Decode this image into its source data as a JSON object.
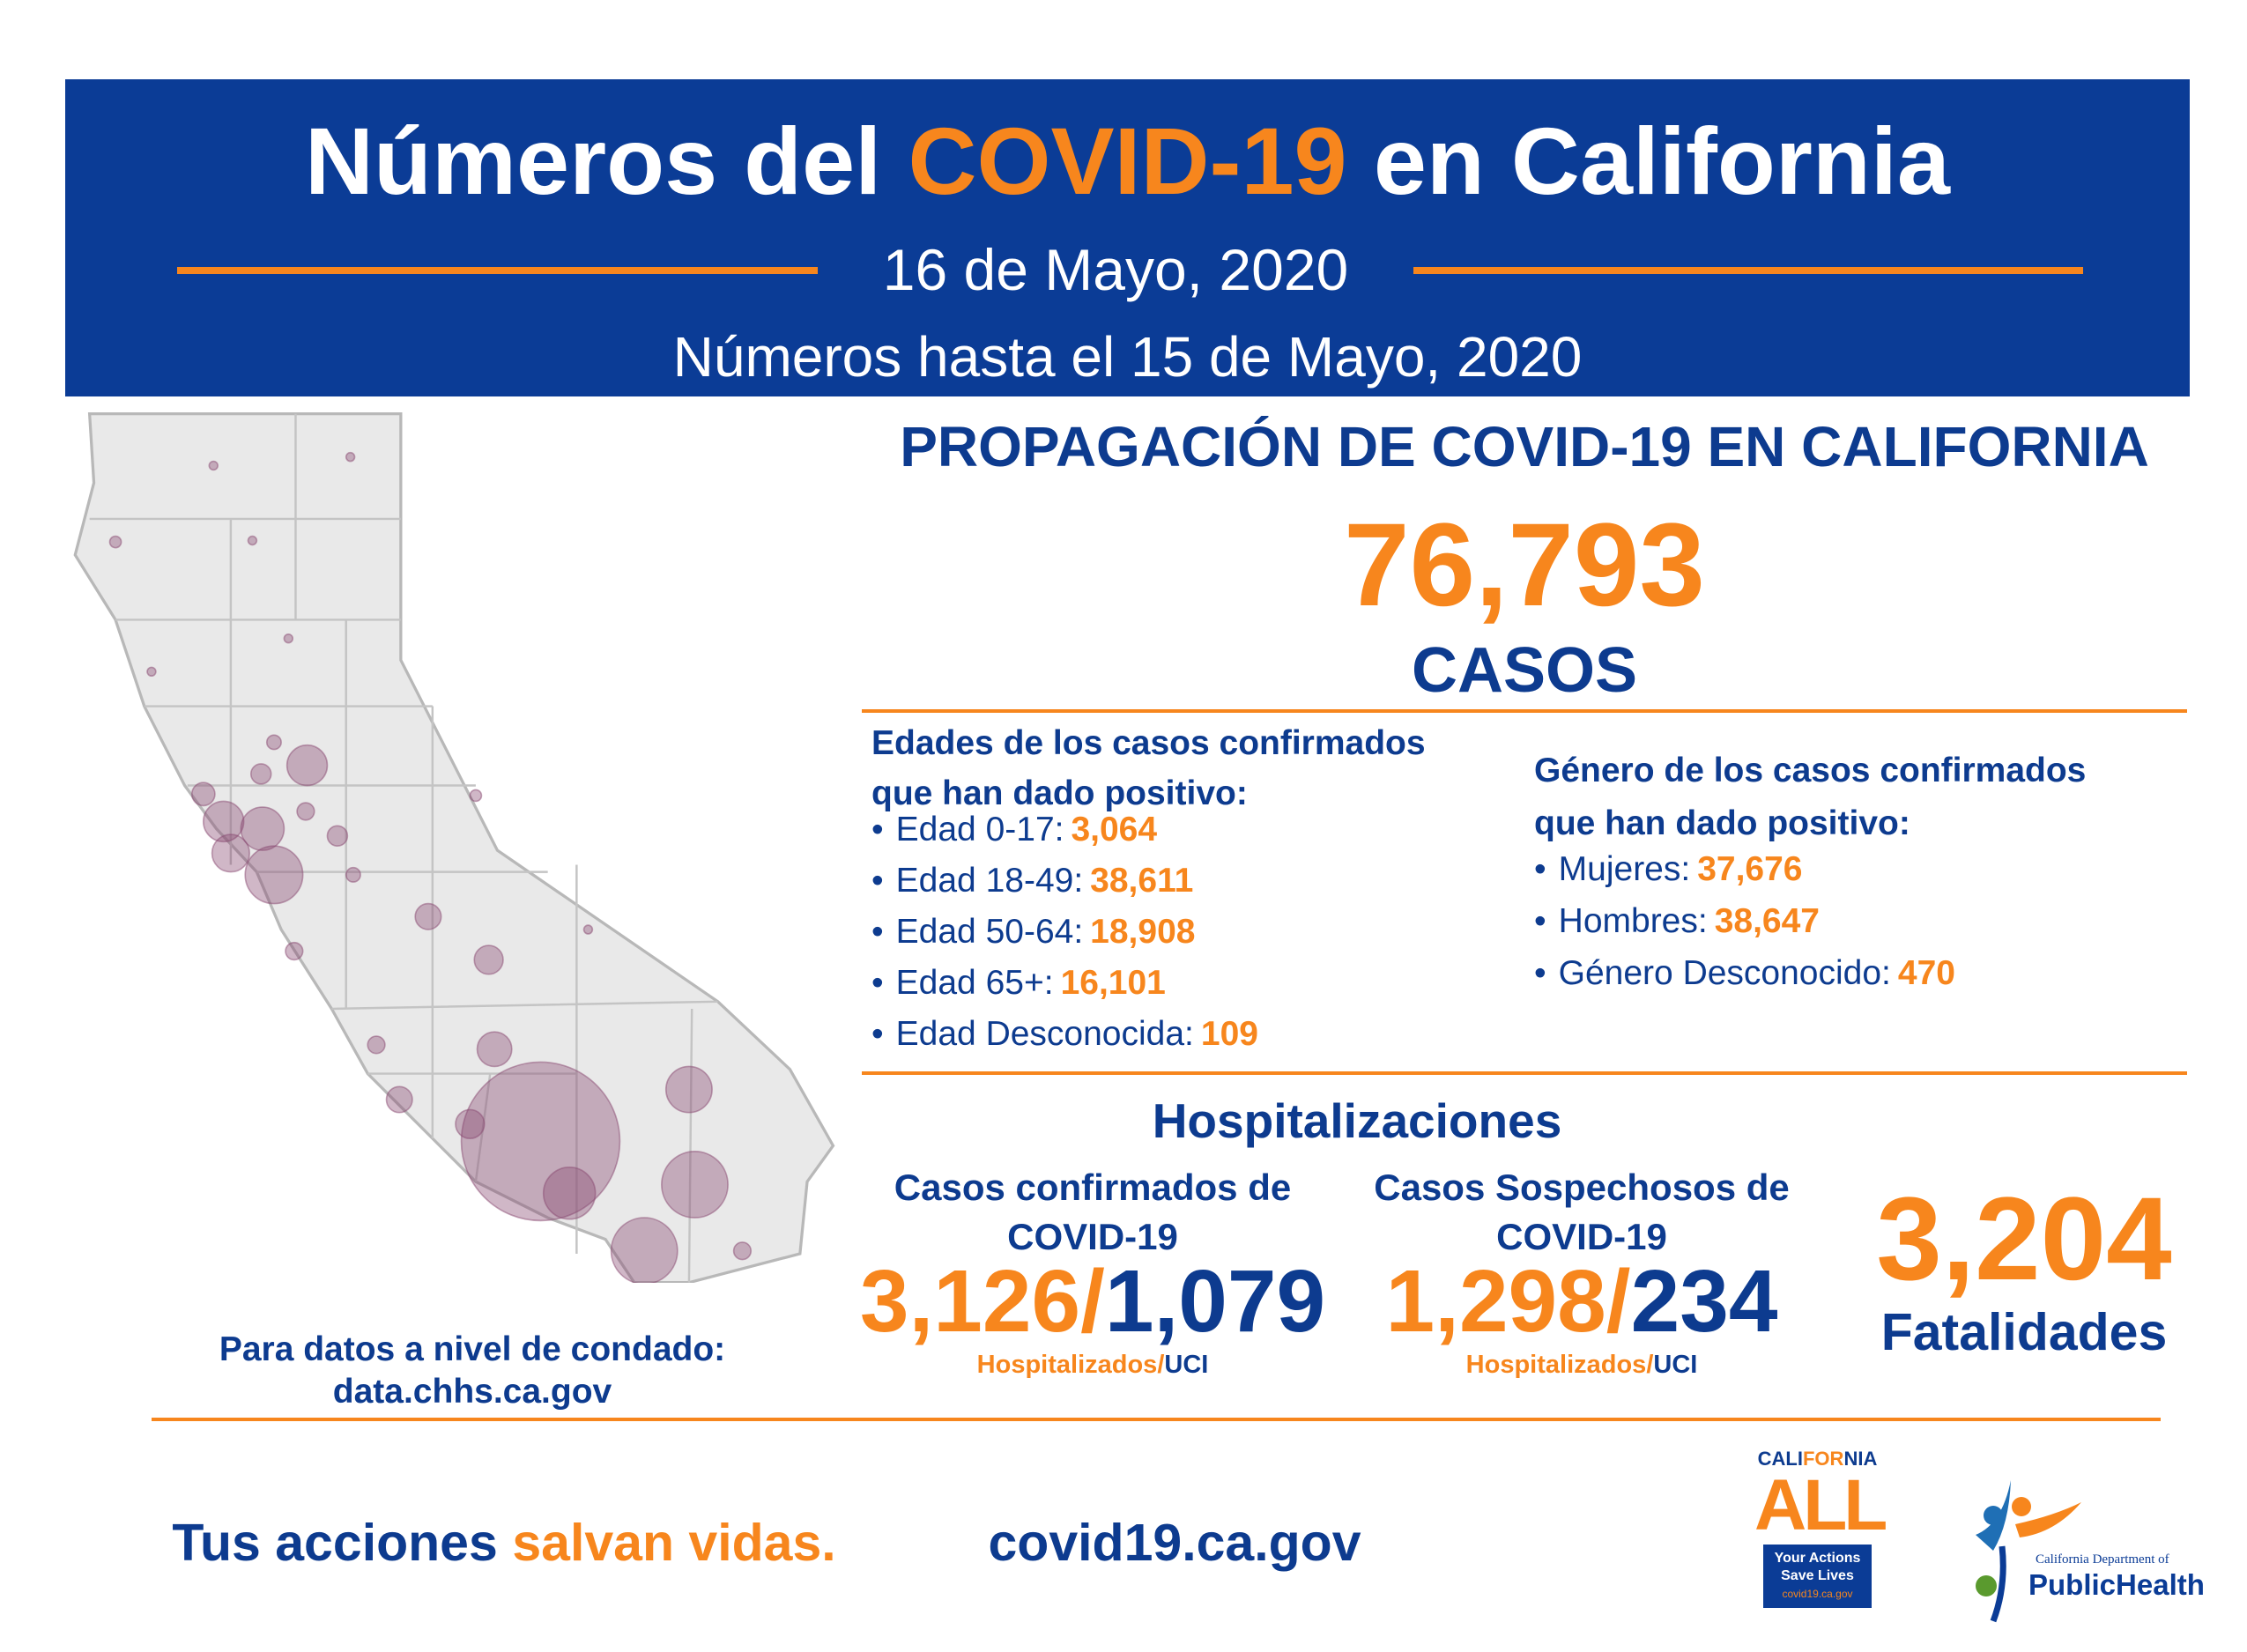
{
  "header": {
    "title_before": "Números del",
    "title_highlight": "COVID-19",
    "title_after": "en California",
    "date": "16 de Mayo, 2020",
    "as_of": "Números hasta el 15 de Mayo, 2020"
  },
  "spread": {
    "title": "PROPAGACIÓN DE COVID-19 EN CALIFORNIA",
    "total": "76,793",
    "total_label": "CASOS"
  },
  "ages": {
    "heading_line1": "Edades de los casos confirmados",
    "heading_line2": "que han dado positivo:",
    "items": [
      {
        "label": "Edad 0-17:",
        "value": "3,064"
      },
      {
        "label": "Edad 18-49:",
        "value": "38,611"
      },
      {
        "label": "Edad 50-64:",
        "value": "18,908"
      },
      {
        "label": "Edad 65+:",
        "value": "16,101"
      },
      {
        "label": "Edad Desconocida:",
        "value": "109"
      }
    ]
  },
  "gender": {
    "heading_line1": "Género de los casos confirmados",
    "heading_line2": "que han dado positivo:",
    "items": [
      {
        "label": "Mujeres:",
        "value": "37,676"
      },
      {
        "label": "Hombres:",
        "value": "38,647"
      },
      {
        "label": "Género Desconocido:",
        "value": "470"
      }
    ]
  },
  "hospital": {
    "title": "Hospitalizaciones",
    "confirmed": {
      "heading_line1": "Casos confirmados de",
      "heading_line2": "COVID-19",
      "hospitalized": "3,126",
      "separator": "/",
      "icu": "1,079",
      "hospitalized_label": "Hospitalizados/",
      "icu_label": "UCI"
    },
    "suspected": {
      "heading_line1": "Casos Sospechosos de",
      "heading_line2": "COVID-19",
      "hospitalized": "1,298",
      "separator": "/",
      "icu": "234",
      "hospitalized_label": "Hospitalizados/",
      "icu_label": "UCI"
    }
  },
  "fatalities": {
    "value": "3,204",
    "label": "Fatalidades"
  },
  "county": {
    "text": "Para datos a nivel de condado:",
    "url": "data.chhs.ca.gov"
  },
  "footer": {
    "slogan_start": "Tus acciones",
    "slogan_highlight": "salvan vidas.",
    "url": "covid19.ca.gov"
  },
  "logos": {
    "ca_all": {
      "top_a": "CALI",
      "top_b": "FOR",
      "top_c": "NIA",
      "big": "ALL",
      "box_line1": "Your Actions",
      "box_line2": "Save Lives",
      "box_line3": "covid19.ca.gov"
    },
    "cdph": {
      "small": "California Department of",
      "big_a": "Public",
      "big_b": "Health"
    }
  }
}
